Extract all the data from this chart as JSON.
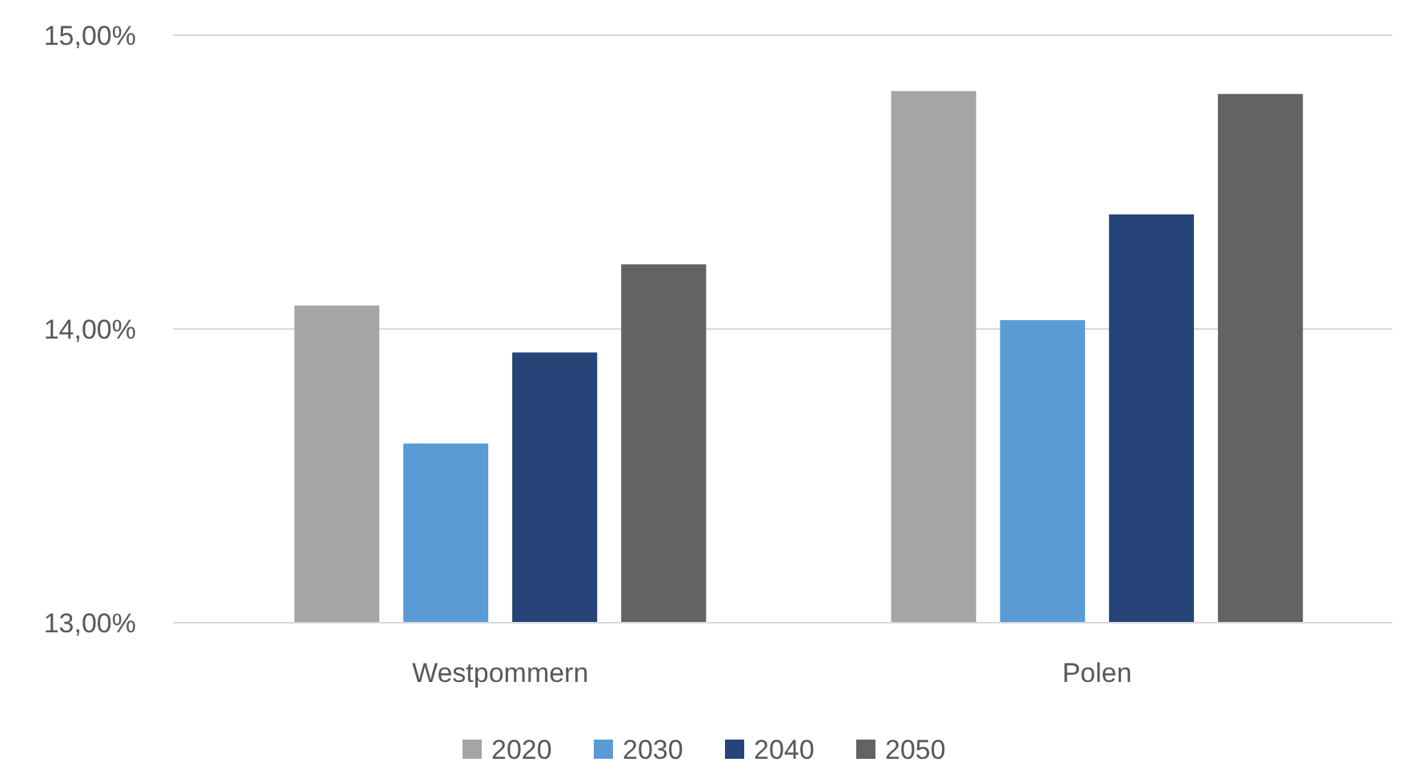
{
  "chart_data": {
    "type": "bar",
    "categories": [
      "Westpommern",
      "Polen"
    ],
    "series": [
      {
        "name": "2020",
        "color": "#a5a5a5",
        "values": [
          14.08,
          14.81
        ]
      },
      {
        "name": "2030",
        "color": "#5b9bd5",
        "values": [
          13.61,
          14.03
        ]
      },
      {
        "name": "2040",
        "color": "#264478",
        "values": [
          13.92,
          14.39
        ]
      },
      {
        "name": "2050",
        "color": "#636363",
        "values": [
          14.22,
          14.8
        ]
      }
    ],
    "ylim": [
      13,
      15
    ],
    "yticks": [
      {
        "value": 13,
        "label": "13,00%"
      },
      {
        "value": 14,
        "label": "14,00%"
      },
      {
        "value": 15,
        "label": "15,00%"
      }
    ],
    "grid": "y",
    "legend": "bottom"
  }
}
